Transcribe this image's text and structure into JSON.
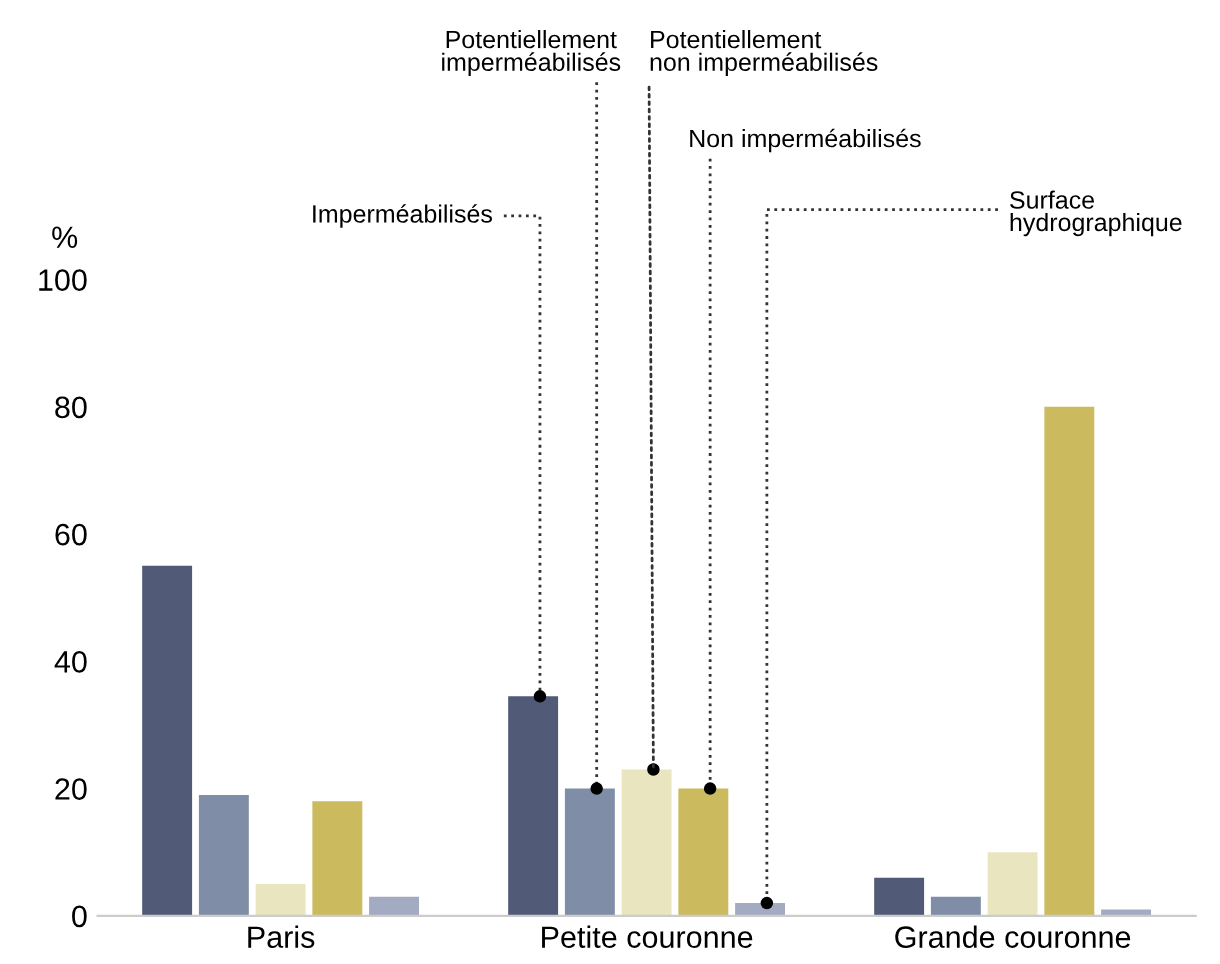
{
  "chart_data": {
    "type": "bar",
    "ylabel": "%",
    "categories": [
      "Paris",
      "Petite couronne",
      "Grande couronne"
    ],
    "series": [
      {
        "name": "Imperméabilisés",
        "color": "#515a76",
        "values": [
          55,
          34.5,
          6
        ]
      },
      {
        "name": "Potentiellement imperméabilisés",
        "color": "#7f8ea6",
        "values": [
          19,
          20,
          3
        ]
      },
      {
        "name": "Potentiellement non imperméabilisés",
        "color": "#e9e5bf",
        "values": [
          5,
          23,
          10
        ]
      },
      {
        "name": "Non imperméabilisés",
        "color": "#cbbb5e",
        "values": [
          18,
          20,
          80
        ]
      },
      {
        "name": "Surface hydrographique",
        "color": "#a3abc2",
        "values": [
          3,
          2,
          1
        ]
      }
    ],
    "ylim": [
      0,
      100
    ],
    "yticks": [
      0,
      20,
      40,
      60,
      80,
      100
    ],
    "grid": false,
    "legend": false
  }
}
